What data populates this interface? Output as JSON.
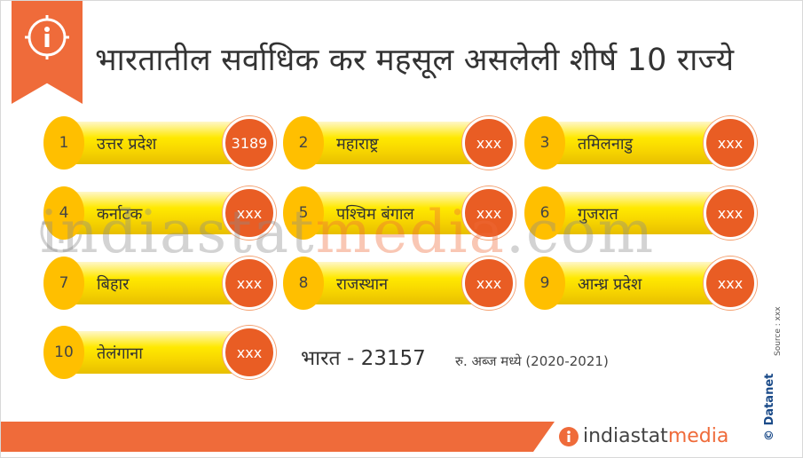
{
  "header": {
    "title": "भारतातील सर्वाधिक कर महसूल असलेली शीर्ष 10 राज्ये"
  },
  "states": [
    {
      "rank": "1",
      "name": "उत्तर प्रदेश",
      "value": "3189"
    },
    {
      "rank": "2",
      "name": "महाराष्ट्र",
      "value": "xxx"
    },
    {
      "rank": "3",
      "name": "तमिलनाडु",
      "value": "xxx"
    },
    {
      "rank": "4",
      "name": "कर्नाटक",
      "value": "xxx"
    },
    {
      "rank": "5",
      "name": "पश्चिम बंगाल",
      "value": "xxx"
    },
    {
      "rank": "6",
      "name": "गुजरात",
      "value": "xxx"
    },
    {
      "rank": "7",
      "name": "बिहार",
      "value": "xxx"
    },
    {
      "rank": "8",
      "name": "राजस्थान",
      "value": "xxx"
    },
    {
      "rank": "9",
      "name": "आन्ध्र प्रदेश",
      "value": "xxx"
    },
    {
      "rank": "10",
      "name": "तेलंगाना",
      "value": "xxx"
    }
  ],
  "summary": {
    "total": "भारत - 23157",
    "unit": "रु. अब्ज मध्ये (2020-2021)"
  },
  "watermark": {
    "part1": "indiastat",
    "part2": "media",
    "part3": ".com"
  },
  "footer": {
    "source": "Source : xxx",
    "copyright": "© Datanet",
    "brand_part1": "indiastat",
    "brand_part2": "media"
  },
  "colors": {
    "accent": "#ef6b3a",
    "value_circle": "#e95d24",
    "rank_circle": "#ffbf00",
    "bar_yellow": "#ffe900"
  },
  "icons": [
    "info-icon",
    "watermark-info-icon",
    "brand-info-icon"
  ]
}
